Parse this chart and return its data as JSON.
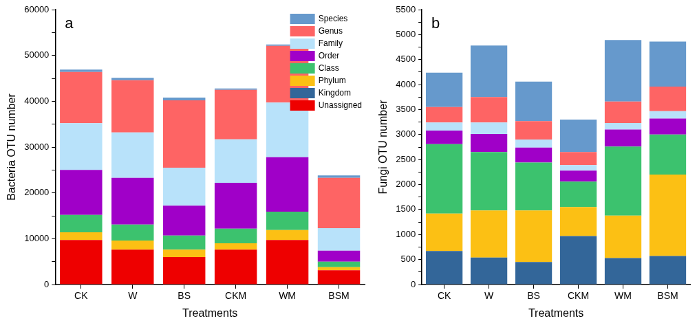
{
  "chart_data": [
    {
      "type": "bar",
      "stacked": true,
      "categories": [
        "CK",
        "W",
        "BS",
        "CKM",
        "WM",
        "BSM"
      ],
      "xlabel": "Treatments",
      "ylabel": "Bacteria OTU number",
      "ylim": [
        0,
        60000
      ],
      "yticks": [
        0,
        {
          "value": 5000,
          "label": null
        },
        10000,
        {
          "value": 15000,
          "label": null
        },
        20000,
        {
          "value": 25000,
          "label": null
        },
        30000,
        {
          "value": 35000,
          "label": null
        },
        40000,
        {
          "value": 45000,
          "label": null
        },
        50000,
        {
          "value": 55000,
          "label": null
        },
        60000
      ],
      "grid": false,
      "legend": "top right",
      "annotations": [
        "a"
      ],
      "series": [
        {
          "name": "Unassigned",
          "color": "#ee0000",
          "values": [
            9700,
            7600,
            6000,
            7600,
            9700,
            3100
          ]
        },
        {
          "name": "Kingdom",
          "color": "#336699",
          "values": [
            0,
            0,
            0,
            0,
            0,
            0
          ]
        },
        {
          "name": "Phylum",
          "color": "#fcc014",
          "values": [
            1700,
            2000,
            1600,
            1400,
            2200,
            700
          ]
        },
        {
          "name": "Class",
          "color": "#3cc26e",
          "values": [
            3800,
            3500,
            3100,
            3200,
            4000,
            1200
          ]
        },
        {
          "name": "Order",
          "color": "#a000c8",
          "values": [
            9800,
            10200,
            6500,
            10000,
            11900,
            2400
          ]
        },
        {
          "name": "Family",
          "color": "#b8e2fa",
          "values": [
            10200,
            9900,
            8300,
            9500,
            11900,
            4900
          ]
        },
        {
          "name": "Genus",
          "color": "#fe6464",
          "values": [
            11200,
            11400,
            14700,
            10800,
            12400,
            11000
          ]
        },
        {
          "name": "Species",
          "color": "#6699cc",
          "values": [
            500,
            500,
            600,
            300,
            300,
            500
          ]
        }
      ]
    },
    {
      "type": "bar",
      "stacked": true,
      "categories": [
        "CK",
        "W",
        "BS",
        "CKM",
        "WM",
        "BSM"
      ],
      "xlabel": "Treatments",
      "ylabel": "Fungi OTU number",
      "ylim": [
        0,
        5500
      ],
      "yticks": [
        0,
        {
          "value": 250,
          "label": null
        },
        500,
        {
          "value": 750,
          "label": null
        },
        1000,
        {
          "value": 1250,
          "label": null
        },
        1500,
        {
          "value": 1750,
          "label": null
        },
        2000,
        {
          "value": 2250,
          "label": null
        },
        2500,
        {
          "value": 2750,
          "label": null
        },
        3000,
        {
          "value": 3250,
          "label": null
        },
        3500,
        {
          "value": 3750,
          "label": null
        },
        4000,
        {
          "value": 4250,
          "label": null
        },
        4500,
        {
          "value": 4750,
          "label": null
        },
        5000,
        {
          "value": 5250,
          "label": null
        },
        5500
      ],
      "grid": false,
      "annotations": [
        "b"
      ],
      "series": [
        {
          "color": "#336699",
          "values": [
            670,
            540,
            450,
            970,
            530,
            570
          ]
        },
        {
          "color": "#fcc014",
          "values": [
            750,
            940,
            1030,
            580,
            850,
            1630
          ]
        },
        {
          "color": "#3cc26e",
          "values": [
            1390,
            1170,
            960,
            510,
            1380,
            800
          ]
        },
        {
          "color": "#a000c8",
          "values": [
            270,
            360,
            300,
            220,
            340,
            320
          ]
        },
        {
          "color": "#b8e2fa",
          "values": [
            160,
            230,
            160,
            110,
            130,
            150
          ]
        },
        {
          "color": "#fe6464",
          "values": [
            310,
            510,
            370,
            260,
            430,
            490
          ]
        },
        {
          "color": "#6699cc",
          "values": [
            690,
            1030,
            790,
            650,
            1230,
            900
          ]
        }
      ]
    }
  ]
}
